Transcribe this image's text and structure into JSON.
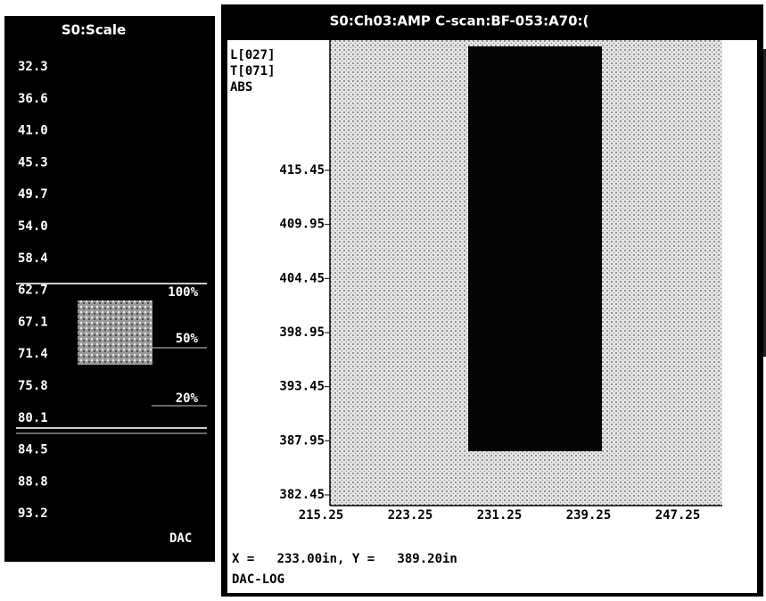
{
  "left_panel": {
    "title": "S0:Scale",
    "scale_values": [
      "32.3",
      "36.6",
      "41.0",
      "45.3",
      "49.7",
      "54.0",
      "58.4",
      "62.7",
      "67.1",
      "71.4",
      "75.8",
      "80.1",
      "84.5",
      "88.8",
      "93.2"
    ],
    "thresholds": [
      "100%",
      "50%",
      "20%"
    ],
    "footer": "DAC"
  },
  "right_panel": {
    "title": "S0:Ch03:AMP C-scan:BF-053:A70:(",
    "info": [
      "L[027]",
      "T[071]",
      "ABS"
    ],
    "y_ticks": [
      "415.45",
      "409.95",
      "404.45",
      "398.95",
      "393.45",
      "387.95",
      "382.45"
    ],
    "x_ticks": [
      "215.25",
      "223.25",
      "231.25",
      "239.25",
      "247.25"
    ],
    "cursor_readout": "X =   233.00in, Y =   389.20in",
    "mode": "DAC-LOG"
  }
}
